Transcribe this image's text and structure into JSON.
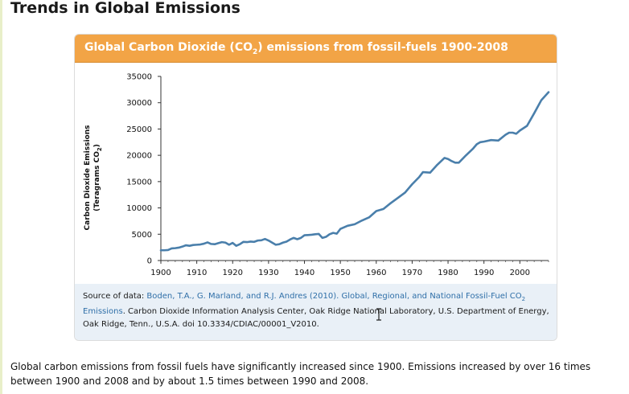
{
  "page": {
    "title": "Trends in Global Emissions",
    "summary": "Global carbon emissions from fossil fuels have significantly increased since 1900. Emissions increased by over 16 times between 1900 and 2008 and by about 1.5 times between 1990 and 2008."
  },
  "panel": {
    "title_pre": "Global Carbon Dioxide (CO",
    "title_sub": "2",
    "title_post": ") emissions from fossil-fuels 1900-2008",
    "header_color": "#f2a446"
  },
  "source": {
    "prefix": "Source of data: ",
    "link_text_1": "Boden, T.A., G. Marland, and R.J. Andres (2010). Global, Regional, and National Fossil-Fuel CO",
    "link_sub": "2",
    "link_text_2": " Emissions",
    "rest": ". Carbon Dioxide Information Analysis Center, Oak Ridge National Laboratory, U.S. Department of Energy, Oak Ridge, Tenn., U.S.A. doi 10.3334/CDIAC/00001_V2010."
  },
  "chart_data": {
    "type": "line",
    "title": "Global Carbon Dioxide (CO2) emissions from fossil-fuels 1900-2008",
    "xlabel": "",
    "ylabel_line1": "Carbon Dioxide Emissions",
    "ylabel_line2_pre": "(Teragrams CO",
    "ylabel_line2_sub": "2",
    "ylabel_line2_post": ")",
    "xlim": [
      1900,
      2008
    ],
    "ylim": [
      0,
      35000
    ],
    "x_ticks": [
      1900,
      1910,
      1920,
      1930,
      1940,
      1950,
      1960,
      1970,
      1980,
      1990,
      2000
    ],
    "y_ticks": [
      0,
      5000,
      10000,
      15000,
      20000,
      25000,
      30000,
      35000
    ],
    "grid": false,
    "line_color": "#4a7fab",
    "series": [
      {
        "x": [
          1900,
          1901,
          1902,
          1903,
          1904,
          1905,
          1906,
          1907,
          1908,
          1909,
          1910,
          1911,
          1912,
          1913,
          1914,
          1915,
          1916,
          1917,
          1918,
          1919,
          1920,
          1921,
          1922,
          1923,
          1924,
          1925,
          1926,
          1927,
          1928,
          1929,
          1930,
          1931,
          1932,
          1933,
          1934,
          1935,
          1936,
          1937,
          1938,
          1939,
          1940,
          1941,
          1942,
          1943,
          1944,
          1945,
          1946,
          1947,
          1948,
          1949,
          1950,
          1952,
          1954,
          1956,
          1958,
          1960,
          1962,
          1964,
          1966,
          1968,
          1970,
          1972,
          1973,
          1975,
          1977,
          1979,
          1980,
          1981,
          1982,
          1983,
          1985,
          1987,
          1988,
          1989,
          1990,
          1992,
          1994,
          1996,
          1997,
          1998,
          1999,
          2000,
          2002,
          2004,
          2006,
          2008
        ],
        "values": [
          1950,
          1950,
          2000,
          2300,
          2350,
          2450,
          2650,
          2900,
          2800,
          2950,
          3000,
          3050,
          3200,
          3450,
          3150,
          3100,
          3300,
          3500,
          3400,
          3000,
          3350,
          2800,
          3100,
          3550,
          3500,
          3600,
          3550,
          3800,
          3850,
          4100,
          3800,
          3400,
          3000,
          3100,
          3400,
          3600,
          4000,
          4300,
          4050,
          4300,
          4800,
          4850,
          4900,
          5000,
          5050,
          4300,
          4500,
          5000,
          5250,
          5100,
          6000,
          6600,
          6900,
          7600,
          8200,
          9400,
          9800,
          10900,
          11900,
          12900,
          14500,
          15900,
          16800,
          16700,
          18200,
          19500,
          19300,
          18900,
          18600,
          18600,
          20000,
          21300,
          22100,
          22500,
          22600,
          22900,
          22800,
          23900,
          24300,
          24300,
          24100,
          24700,
          25600,
          28000,
          30500,
          32000
        ]
      }
    ]
  }
}
